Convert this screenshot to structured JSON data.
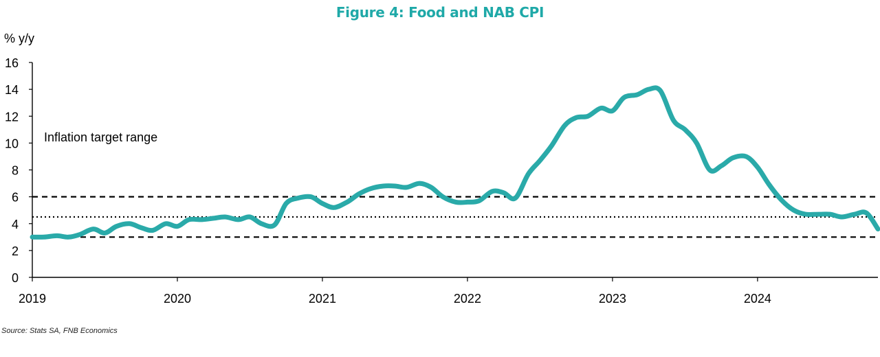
{
  "chart_data": {
    "type": "line",
    "title": "Figure 4: Food and NAB CPI",
    "ylabel": "% y/y",
    "xlabel": "",
    "source": "Source: Stats SA, FNB Economics",
    "annotation": "Inflation target range",
    "xlim": [
      2019.0,
      2024.83
    ],
    "ylim": [
      0,
      16
    ],
    "yticks": [
      0,
      2,
      4,
      6,
      8,
      10,
      12,
      14,
      16
    ],
    "xticks": [
      "2019",
      "2020",
      "2021",
      "2022",
      "2023",
      "2024"
    ],
    "grid": false,
    "colors": {
      "series": "#2aaaa9",
      "reference": "#000000",
      "title": "#1fa9a8"
    },
    "reference_lines": [
      {
        "value": 3,
        "style": "dashed"
      },
      {
        "value": 4.5,
        "style": "dotted"
      },
      {
        "value": 6,
        "style": "dashed"
      }
    ],
    "series": [
      {
        "x": [
          2019.0,
          2019.08,
          2019.17,
          2019.25,
          2019.33,
          2019.42,
          2019.5,
          2019.58,
          2019.67,
          2019.75,
          2019.83,
          2019.92,
          2020.0,
          2020.08,
          2020.17,
          2020.25,
          2020.33,
          2020.42,
          2020.5,
          2020.58,
          2020.67,
          2020.75,
          2020.83,
          2020.92,
          2021.0,
          2021.08,
          2021.17,
          2021.25,
          2021.33,
          2021.42,
          2021.5,
          2021.58,
          2021.67,
          2021.75,
          2021.83,
          2021.92,
          2022.0,
          2022.08,
          2022.17,
          2022.25,
          2022.33,
          2022.42,
          2022.5,
          2022.58,
          2022.67,
          2022.75,
          2022.83,
          2022.92,
          2023.0,
          2023.08,
          2023.17,
          2023.25,
          2023.33,
          2023.42,
          2023.5,
          2023.58,
          2023.67,
          2023.75,
          2023.83,
          2023.92,
          2024.0,
          2024.08,
          2024.17,
          2024.25,
          2024.33,
          2024.42,
          2024.5,
          2024.58,
          2024.67,
          2024.75,
          2024.83
        ],
        "values": [
          3.0,
          3.0,
          3.1,
          3.0,
          3.2,
          3.6,
          3.3,
          3.8,
          4.0,
          3.7,
          3.5,
          4.0,
          3.8,
          4.3,
          4.3,
          4.4,
          4.5,
          4.3,
          4.5,
          4.0,
          3.9,
          5.5,
          5.9,
          6.0,
          5.5,
          5.2,
          5.6,
          6.2,
          6.6,
          6.8,
          6.8,
          6.7,
          7.0,
          6.7,
          6.0,
          5.6,
          5.6,
          5.7,
          6.4,
          6.3,
          5.9,
          7.7,
          8.7,
          9.8,
          11.3,
          11.9,
          12.0,
          12.6,
          12.4,
          13.4,
          13.6,
          14.0,
          13.9,
          11.7,
          11.0,
          10.0,
          8.0,
          8.3,
          8.9,
          9.0,
          8.2,
          6.9,
          5.7,
          5.0,
          4.7,
          4.7,
          4.7,
          4.5,
          4.7,
          4.8,
          3.6
        ]
      }
    ]
  }
}
